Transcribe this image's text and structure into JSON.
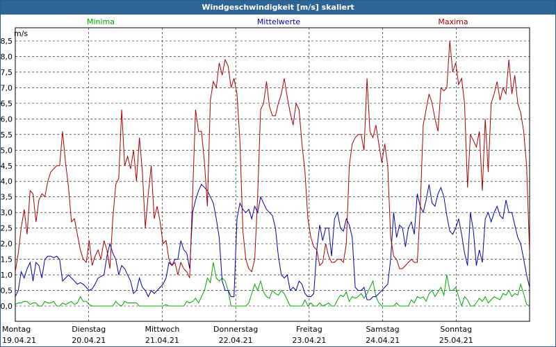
{
  "window": {
    "title": "Windgeschwindigkeit [m/s] skaliert"
  },
  "colors": {
    "titlebar": "#2f6595",
    "minima": "#00aa00",
    "mittel": "#0000aa",
    "maxima": "#aa0000"
  },
  "chart_data": {
    "type": "line",
    "unit_label": "m/s",
    "ylim": [
      0,
      9
    ],
    "yticks": [
      "0,0",
      "0,5",
      "1,0",
      "1,5",
      "2,0",
      "2,5",
      "3,0",
      "3,5",
      "4,0",
      "4,5",
      "5,0",
      "5,5",
      "6,0",
      "6,5",
      "7,0",
      "7,5",
      "8,0",
      "8,5"
    ],
    "xlim": [
      0,
      7
    ],
    "grid": true,
    "days": [
      {
        "name": "Montag",
        "date": "19.04.21"
      },
      {
        "name": "Dienstag",
        "date": "20.04.21"
      },
      {
        "name": "Mittwoch",
        "date": "21.04.21"
      },
      {
        "name": "Donnerstag",
        "date": "22.04.21"
      },
      {
        "name": "Freitag",
        "date": "23.04.21"
      },
      {
        "name": "Samstag",
        "date": "24.04.21"
      },
      {
        "name": "Sonntag",
        "date": "25.04.21"
      }
    ],
    "series": [
      {
        "name": "Minima",
        "values": [
          0.05,
          0.1,
          0.1,
          0.15,
          0.15,
          0.05,
          0.1,
          0.1,
          0.0,
          0.0,
          0.15,
          0.1,
          0.1,
          0.15,
          0.0,
          0.0,
          0.1,
          0.05,
          0.1,
          0.15,
          0.05,
          0.1,
          0.3,
          0.15,
          0.15,
          0.05,
          0.0,
          0.0,
          0.0,
          0.0,
          0.0,
          0.0,
          0.0,
          0.0,
          0.15,
          0.05,
          0.0,
          0.15,
          0.1,
          0.1,
          0.1,
          0.1,
          0.0,
          0.0,
          0.0,
          0.0,
          0.0,
          0.0,
          0.0,
          0.0,
          0.0,
          0.05,
          0.0,
          0.0,
          0.0,
          0.0,
          0.0,
          0.0,
          0.15,
          0.1,
          0.15,
          0.25,
          0.1,
          0.3,
          0.5,
          0.9,
          0.75,
          1.4,
          0.9,
          0.8,
          0.9,
          0.8,
          0.5,
          0.0,
          0.0,
          0.0,
          0.0,
          0.0,
          0.0,
          0.1,
          0.4,
          0.7,
          0.5,
          0.8,
          0.45,
          0.3,
          0.25,
          0.5,
          0.4,
          0.35,
          0.5,
          0.4,
          0.2,
          0.0,
          0.0,
          0.0,
          0.0,
          0.0,
          0.2,
          0.0,
          0.1,
          0.0,
          0.0,
          0.1,
          0.0,
          0.05,
          0.1,
          0.0,
          0.0,
          0.2,
          0.35,
          0.3,
          0.45,
          0.15,
          0.3,
          0.25,
          0.3,
          0.4,
          0.25,
          0.4,
          0.6,
          0.8,
          0.3,
          0.1,
          0.0,
          0.0,
          0.0,
          0.0,
          0.0,
          0.1,
          0.0,
          0.0,
          0.0,
          0.0,
          0.2,
          0.1,
          0.3,
          0.25,
          0.3,
          0.15,
          0.4,
          0.5,
          0.3,
          0.45,
          0.6,
          0.35,
          1.0,
          0.5,
          0.5,
          0.6,
          0.3,
          0.0,
          0.3,
          0.2,
          0.0,
          0.0,
          0.1,
          0.25,
          0.15,
          0.3,
          0.1,
          0.2,
          0.3,
          0.25,
          0.2,
          0.4,
          0.35,
          0.5,
          0.3,
          0.4,
          0.35,
          0.7,
          0.4,
          0.05,
          0.0
        ]
      },
      {
        "name": "Mittelwerte",
        "values": [
          0.3,
          0.5,
          1.1,
          0.9,
          1.2,
          1.4,
          0.8,
          1.4,
          1.3,
          0.9,
          1.5,
          1.6,
          1.6,
          1.55,
          1.6,
          1.5,
          0.8,
          0.9,
          1.0,
          0.9,
          0.8,
          0.7,
          0.75,
          0.7,
          0.6,
          0.5,
          0.55,
          0.7,
          0.9,
          0.95,
          1.0,
          1.6,
          2.0,
          1.7,
          1.5,
          1.0,
          1.3,
          1.2,
          1.0,
          0.8,
          0.4,
          0.5,
          0.9,
          0.6,
          0.5,
          0.3,
          0.5,
          0.4,
          0.5,
          0.6,
          0.7,
          0.9,
          1.4,
          1.3,
          1.5,
          1.5,
          2.1,
          1.8,
          1.7,
          1.2,
          3.0,
          3.4,
          3.7,
          3.9,
          3.8,
          3.7,
          3.5,
          3.3,
          2.8,
          2.2,
          0.8,
          0.5,
          0.5,
          0.3,
          0.3,
          2.8,
          3.3,
          3.1,
          3.0,
          3.1,
          2.8,
          3.2,
          3.0,
          3.5,
          3.3,
          3.1,
          3.0,
          2.9,
          2.5,
          1.6,
          1.0,
          0.9,
          1.0,
          0.5,
          0.6,
          0.5,
          0.8,
          0.7,
          0.4,
          0.3,
          0.3,
          0.4,
          1.8,
          2.6,
          2.1,
          2.5,
          2.5,
          1.6,
          2.8,
          3.0,
          2.5,
          2.4,
          2.8,
          2.6,
          2.2,
          0.6,
          0.5,
          0.5,
          0.6,
          0.2,
          0.2,
          0.3,
          0.3,
          0.4,
          0.5,
          0.6,
          0.7,
          1.5,
          3.0,
          2.2,
          2.6,
          2.5,
          1.9,
          2.5,
          2.7,
          2.3,
          3.6,
          3.2,
          3.0,
          3.4,
          3.9,
          3.3,
          3.2,
          3.6,
          3.8,
          3.5,
          2.9,
          2.4,
          2.3,
          2.5,
          2.8,
          2.3,
          1.7,
          1.3,
          3.0,
          2.4,
          1.3,
          1.8,
          1.4,
          2.8,
          3.0,
          2.7,
          3.0,
          3.2,
          2.9,
          2.8,
          3.4,
          3.0,
          3.0,
          2.6,
          2.2,
          2.0,
          1.5,
          1.0,
          0.6
        ]
      },
      {
        "name": "Maxima",
        "values": [
          1.1,
          1.7,
          2.5,
          3.1,
          2.3,
          3.7,
          3.6,
          2.7,
          3.4,
          3.6,
          3.5,
          4.0,
          4.3,
          4.4,
          4.5,
          4.5,
          5.6,
          4.6,
          3.8,
          2.7,
          2.8,
          2.3,
          1.8,
          1.5,
          1.4,
          2.1,
          1.3,
          1.6,
          1.8,
          1.5,
          2.1,
          1.8,
          1.2,
          2.8,
          3.9,
          4.1,
          6.3,
          4.5,
          4.8,
          4.4,
          5.0,
          4.0,
          5.4,
          4.3,
          2.5,
          3.6,
          4.5,
          2.8,
          3.2,
          2.7,
          2.0,
          2.1,
          1.5,
          1.3,
          1.4,
          1.0,
          1.4,
          1.2,
          1.1,
          0.9,
          3.6,
          6.3,
          5.6,
          5.6,
          4.6,
          3.2,
          6.6,
          7.2,
          7.0,
          7.8,
          7.4,
          7.9,
          7.7,
          7.0,
          7.3,
          6.8,
          5.3,
          2.4,
          1.5,
          1.2,
          1.1,
          1.5,
          3.5,
          6.3,
          6.5,
          7.2,
          6.4,
          6.1,
          6.1,
          6.5,
          6.8,
          7.3,
          6.7,
          6.2,
          5.8,
          6.5,
          6.3,
          5.2,
          4.3,
          2.8,
          2.2,
          1.9,
          1.8,
          1.3,
          1.4,
          2.0,
          1.6,
          1.4,
          1.4,
          1.5,
          1.5,
          1.4,
          2.0,
          4.5,
          5.2,
          5.4,
          5.5,
          5.5,
          5.0,
          7.3,
          5.6,
          5.4,
          5.8,
          5.2,
          4.6,
          5.2,
          4.5,
          2.2,
          1.6,
          1.5,
          1.2,
          1.2,
          1.3,
          1.4,
          1.5,
          1.4,
          1.4,
          3.1,
          5.8,
          6.3,
          6.8,
          6.5,
          6.0,
          5.6,
          7.0,
          6.9,
          7.0,
          8.5,
          7.5,
          7.8,
          7.1,
          7.3,
          6.5,
          3.8,
          5.5,
          5.3,
          5.1,
          5.6,
          3.7,
          6.0,
          4.3,
          6.5,
          6.8,
          7.2,
          6.6,
          7.0,
          6.8,
          7.9,
          6.8,
          7.4,
          6.5,
          6.2,
          5.6,
          4.5,
          1.7
        ]
      }
    ]
  }
}
